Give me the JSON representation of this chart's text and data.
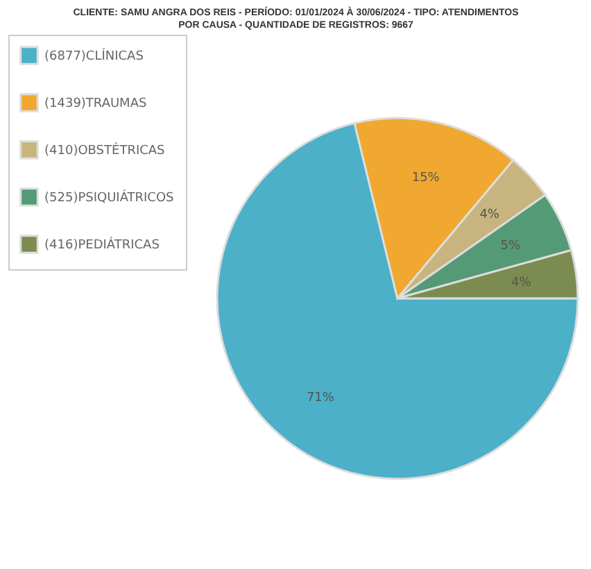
{
  "chart_data": {
    "type": "pie",
    "title": [
      "CLIENTE: SAMU ANGRA DOS REIS - PERÍODO: 01/01/2024 À 30/06/2024 - TIPO: ATENDIMENTOS",
      "POR CAUSA - QUANTIDADE DE REGISTROS: 9667"
    ],
    "categories": [
      "(6877)CLÍNICAS",
      "(1439)TRAUMAS",
      "(410)OBSTÉTRICAS",
      "(525)PSIQUIÁTRICOS",
      "(416)PEDIÁTRICAS"
    ],
    "values": [
      71.1,
      14.9,
      4.2,
      5.4,
      4.3
    ],
    "value_labels": [
      "71%",
      "15%",
      "4%",
      "5%",
      "4%"
    ],
    "colors": [
      "#4bb0c8",
      "#f0a830",
      "#c8b47e",
      "#559a76",
      "#7c8c50"
    ],
    "legend": "left"
  }
}
